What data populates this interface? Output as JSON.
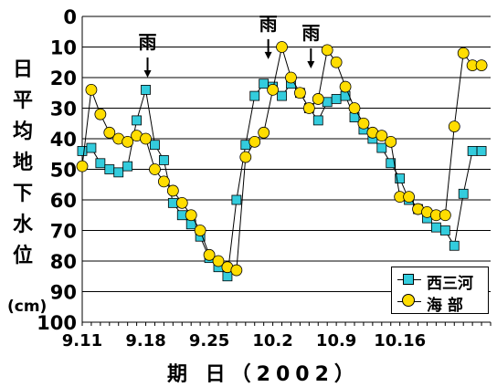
{
  "chart_data": {
    "type": "line",
    "title": "",
    "ylabel_chars": [
      "日",
      "平",
      "均",
      "地",
      "下",
      "水",
      "位"
    ],
    "unit": "(cm)",
    "xlabel": "期 日（2002）",
    "ylim": [
      0,
      100
    ],
    "y_inverted": true,
    "yticks": [
      "0",
      "10",
      "20",
      "30",
      "40",
      "50",
      "60",
      "70",
      "80",
      "90",
      "100"
    ],
    "xtick_labels": [
      "9.11",
      "9.18",
      "9.25",
      "10.2",
      "10.9",
      "10.16"
    ],
    "xlim": [
      0,
      45
    ],
    "xtick_positions": [
      0,
      7,
      14,
      21,
      28,
      35
    ],
    "grid": true,
    "legend_position": "bottom-right",
    "annotations": [
      {
        "text": "雨",
        "x": 7.2,
        "y": 20,
        "arrow": true
      },
      {
        "text": "雨",
        "x": 20.5,
        "y": 14,
        "arrow": true
      },
      {
        "text": "雨",
        "x": 25.2,
        "y": 17,
        "arrow": true
      }
    ],
    "series": [
      {
        "name": "西三河",
        "marker": "square",
        "color": "#33ccdd",
        "x": [
          0,
          1,
          2,
          3,
          4,
          5,
          6,
          7,
          8,
          9,
          10,
          11,
          12,
          13,
          14,
          15,
          16,
          17,
          18,
          19,
          20,
          21,
          22,
          23,
          24,
          25,
          26,
          27,
          28,
          29,
          30,
          31,
          32,
          33,
          34,
          35,
          36,
          37,
          38,
          39,
          40,
          41,
          42,
          43,
          44
        ],
        "values": [
          44,
          43,
          48,
          50,
          51,
          49,
          34,
          24,
          42,
          47,
          61,
          65,
          68,
          72,
          79,
          82,
          85,
          60,
          42,
          26,
          22,
          23,
          26,
          22,
          25,
          30,
          34,
          28,
          27,
          26,
          33,
          37,
          40,
          43,
          48,
          53,
          60,
          63,
          66,
          69,
          70,
          75,
          58,
          44,
          44
        ]
      },
      {
        "name": "海 部",
        "marker": "circle",
        "color": "#ffdd00",
        "x": [
          0,
          1,
          2,
          3,
          4,
          5,
          6,
          7,
          8,
          9,
          10,
          11,
          12,
          13,
          14,
          15,
          16,
          17,
          18,
          19,
          20,
          21,
          22,
          23,
          24,
          25,
          26,
          27,
          28,
          29,
          30,
          31,
          32,
          33,
          34,
          35,
          36,
          37,
          38,
          39,
          40,
          41,
          42,
          43,
          44
        ],
        "values": [
          49,
          24,
          32,
          38,
          40,
          41,
          39,
          40,
          50,
          54,
          57,
          61,
          65,
          70,
          78,
          80,
          82,
          83,
          46,
          41,
          38,
          24,
          10,
          20,
          25,
          30,
          27,
          11,
          15,
          23,
          30,
          35,
          38,
          39,
          41,
          59,
          59,
          63,
          64,
          65,
          65,
          36,
          12,
          16,
          16
        ]
      }
    ]
  }
}
